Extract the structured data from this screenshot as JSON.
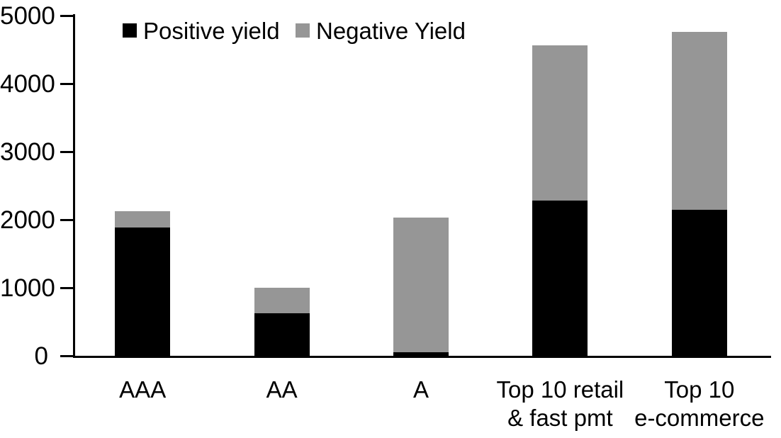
{
  "chart_data": {
    "type": "bar",
    "stacked": true,
    "title": "",
    "xlabel": "",
    "ylabel": "",
    "categories": [
      "AAA",
      "AA",
      "A",
      "Top 10 retail\n& fast pmt",
      "Top 10\ne-commerce"
    ],
    "series": [
      {
        "name": "Positive yield",
        "color": "#000000",
        "values": [
          1890,
          620,
          50,
          2280,
          2150
        ]
      },
      {
        "name": "Negative Yield",
        "color": "#969696",
        "values": [
          230,
          380,
          1980,
          2280,
          2610
        ]
      }
    ],
    "totals": [
      2120,
      1000,
      2030,
      4560,
      4760
    ],
    "ylim": [
      0,
      5000
    ],
    "yticks": [
      0,
      1000,
      2000,
      3000,
      4000,
      5000
    ],
    "grid": false,
    "legend_position": "top-inside"
  },
  "legend": {
    "items": [
      {
        "label": "Positive yield",
        "color": "#000000"
      },
      {
        "label": "Negative Yield",
        "color": "#969696"
      }
    ]
  },
  "colors": {
    "axis": "#000000",
    "background": "#ffffff",
    "positive": "#000000",
    "negative": "#969696"
  }
}
